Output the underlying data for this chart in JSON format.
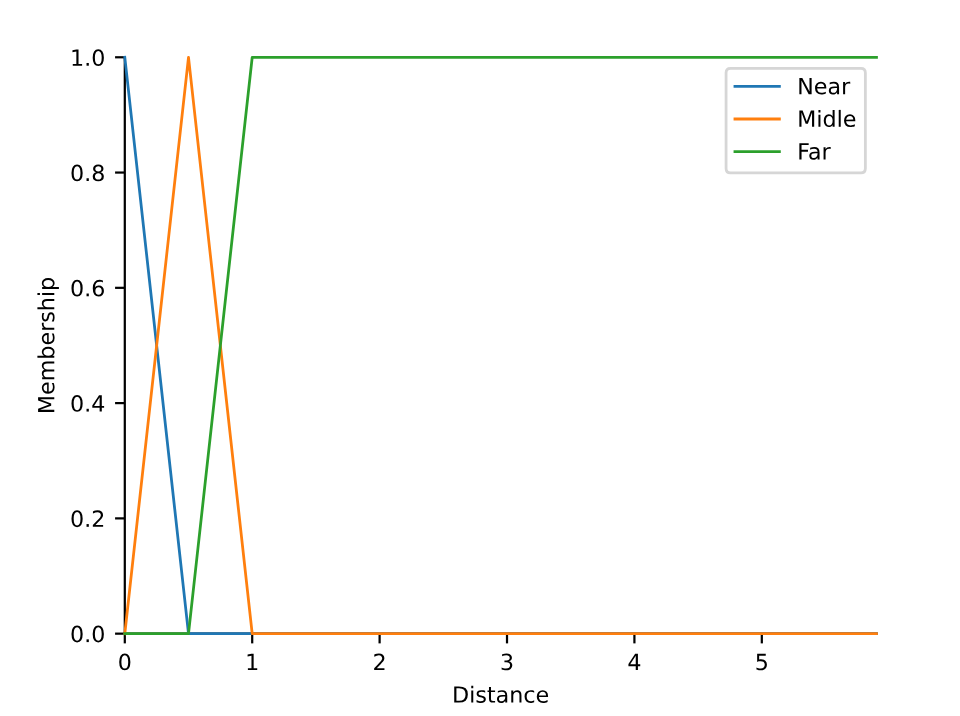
{
  "chart_data": {
    "type": "line",
    "xlabel": "Distance",
    "ylabel": "Membership",
    "x": [
      0,
      0.5,
      1,
      5.9
    ],
    "series": [
      {
        "name": "Near",
        "color": "#1f77b4",
        "values": [
          1,
          0,
          0,
          0
        ]
      },
      {
        "name": "Midle",
        "color": "#ff7f0e",
        "values": [
          0,
          1,
          0,
          0
        ]
      },
      {
        "name": "Far",
        "color": "#2ca02c",
        "values": [
          0,
          0,
          1,
          1
        ]
      }
    ],
    "xlim": [
      0,
      5.9
    ],
    "ylim": [
      0,
      1.0
    ],
    "xticks": [
      0,
      1,
      2,
      3,
      4,
      5
    ],
    "yticks": [
      {
        "value": 0,
        "label": "0.0"
      },
      0.2,
      0.4,
      0.6,
      0.8,
      {
        "value": 1,
        "label": "1.0"
      }
    ],
    "legend": "top right",
    "grid": false,
    "marker": "none",
    "line_style": "solid"
  }
}
